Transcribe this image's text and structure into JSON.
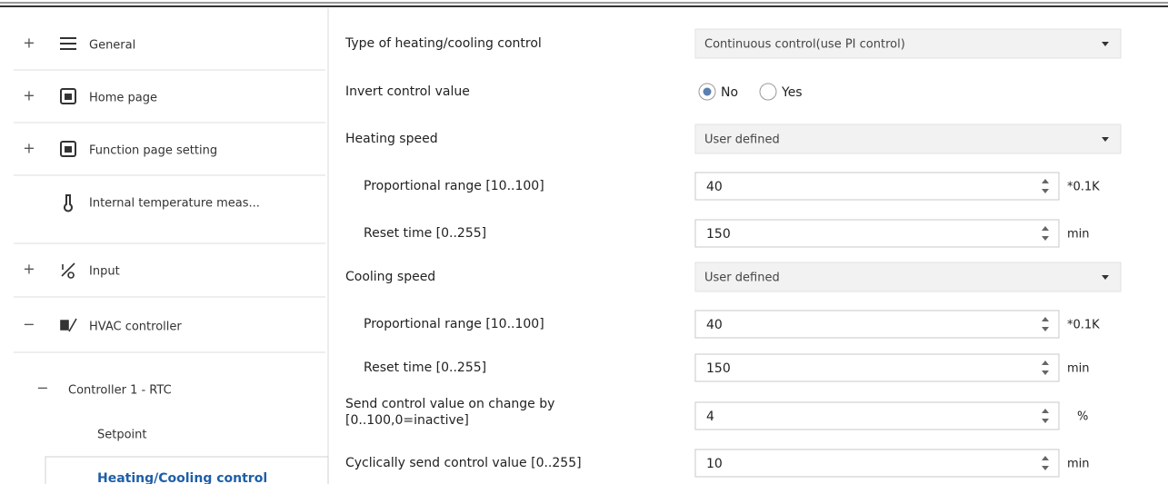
{
  "sidebar": {
    "items": [
      {
        "toggle": "+",
        "label": "General"
      },
      {
        "toggle": "+",
        "label": "Home page"
      },
      {
        "toggle": "+",
        "label": "Function page setting"
      },
      {
        "label": "Internal temperature meas..."
      },
      {
        "toggle": "+",
        "label": "Input"
      },
      {
        "toggle": "−",
        "label": "HVAC controller"
      },
      {
        "toggle": "−",
        "label": "Controller 1 - RTC"
      },
      {
        "label": "Setpoint"
      },
      {
        "label": "Heating/Cooling control"
      }
    ]
  },
  "parameters": [
    {
      "label_lines": [
        "Type of heating/cooling control"
      ],
      "control": "select",
      "value": "Continuous control(use PI control)"
    },
    {
      "label_lines": [
        "Invert control value"
      ],
      "control": "radio",
      "options": [
        "No",
        "Yes"
      ],
      "selected": "No"
    },
    {
      "label_lines": [
        "Heating speed"
      ],
      "control": "select",
      "value": "User defined"
    },
    {
      "label_lines": [
        "Proportional range [10..100]"
      ],
      "control": "spin",
      "value": "40",
      "unit": "*0.1K"
    },
    {
      "label_lines": [
        "Reset time [0..255]"
      ],
      "control": "spin",
      "value": "150",
      "unit": "min"
    },
    {
      "label_lines": [
        "Cooling speed"
      ],
      "control": "select",
      "value": "User defined"
    },
    {
      "label_lines": [
        "Proportional range [10..100]"
      ],
      "control": "spin",
      "value": "40",
      "unit": "*0.1K"
    },
    {
      "label_lines": [
        "Reset time [0..255]"
      ],
      "control": "spin",
      "value": "150",
      "unit": "min"
    },
    {
      "label_lines": [
        "Send control value on change by",
        "[0..100,0=inactive]"
      ],
      "control": "spin",
      "value": "4",
      "unit": "%"
    },
    {
      "label_lines": [
        "Cyclically send control value [0..255]"
      ],
      "control": "spin",
      "value": "10",
      "unit": "min"
    }
  ]
}
